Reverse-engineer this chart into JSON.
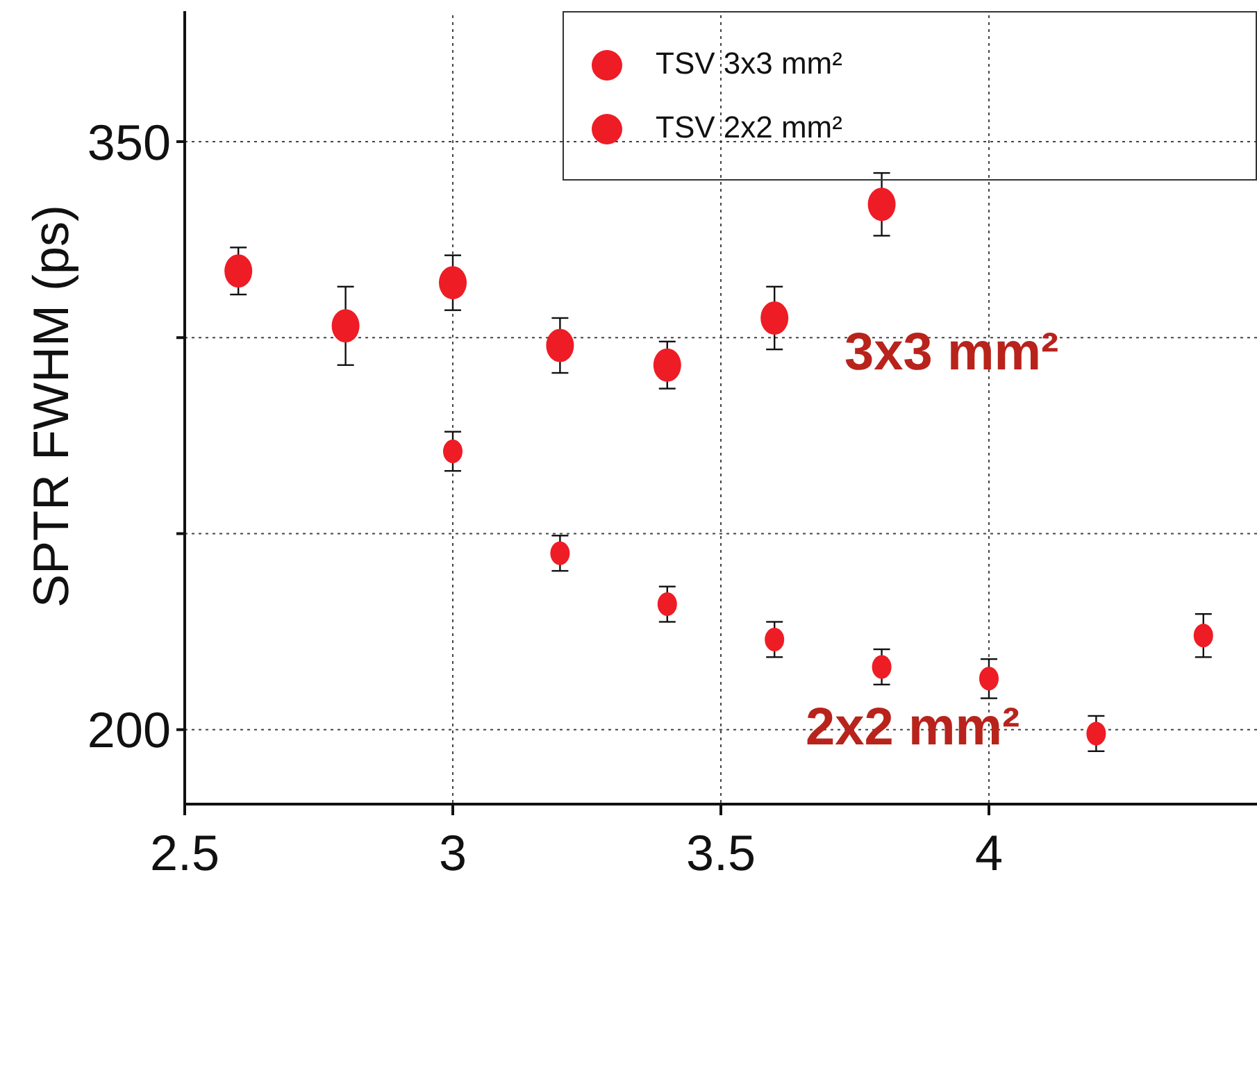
{
  "chart_data": {
    "type": "scatter",
    "ylabel": "SPTR FWHM (ps)",
    "xlim": [
      2.5,
      4.5
    ],
    "xticks": [
      2.5,
      3,
      3.5,
      4
    ],
    "ylim": [
      181,
      384
    ],
    "yticks": [
      {
        "value": 200,
        "label": "200"
      },
      {
        "value": 250,
        "label": null
      },
      {
        "value": 300,
        "label": null
      },
      {
        "value": 350,
        "label": "350"
      }
    ],
    "grid": true,
    "legend": "top right",
    "marker": "circle",
    "annotations": [
      "3x3 mm²",
      "2x2 mm²"
    ],
    "series": [
      {
        "name": "TSV 3x3 mm²",
        "color": "#ee1c25",
        "x": [
          2.6,
          2.8,
          3.0,
          3.2,
          3.4,
          3.6,
          3.8
        ],
        "values": [
          317,
          303,
          314,
          298,
          293,
          305,
          334
        ],
        "errors": [
          6,
          10,
          7,
          7,
          6,
          8,
          8
        ]
      },
      {
        "name": "TSV 2x2 mm²",
        "color": "#ee1c25",
        "x": [
          3.0,
          3.2,
          3.4,
          3.6,
          3.8,
          4.0,
          4.2,
          4.4
        ],
        "values": [
          271,
          245,
          232,
          223,
          216,
          213,
          199,
          224
        ],
        "errors": [
          5,
          4.5,
          4.5,
          4.5,
          4.5,
          5,
          4.5,
          5.5
        ]
      }
    ]
  }
}
